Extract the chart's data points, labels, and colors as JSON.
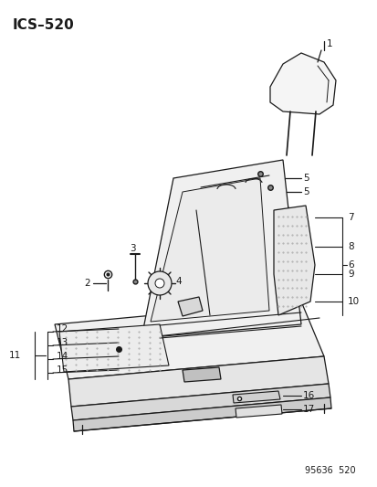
{
  "title": "ICS–520",
  "footer": "95636  520",
  "bg": "#ffffff",
  "lc": "#1a1a1a",
  "fig_w": 4.14,
  "fig_h": 5.33,
  "dpi": 100
}
